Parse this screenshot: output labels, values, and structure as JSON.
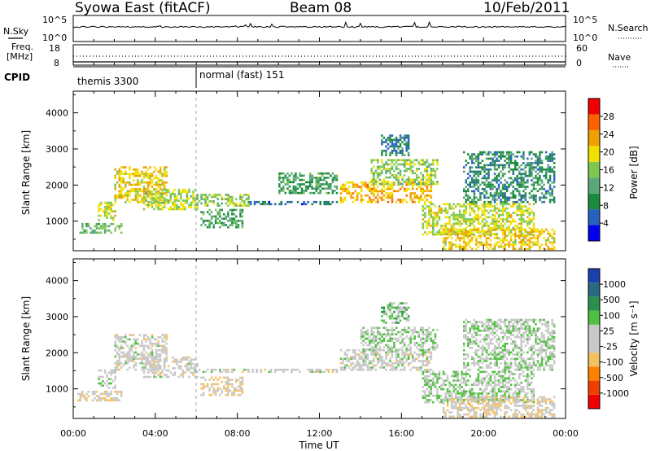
{
  "header": {
    "station": "Syowa East (fitACF)",
    "beam": "Beam 08",
    "date": "10/Feb/2011"
  },
  "noise_panel": {
    "left_label": "N.Sky",
    "right_label": "N.Search",
    "left_ticks": [
      "10^5",
      "10^0"
    ],
    "right_ticks": [
      "10^5",
      "10^0"
    ]
  },
  "freq_panel": {
    "left_label_1": "Freq.",
    "left_label_2": "[MHz]",
    "right_label": "Nave",
    "left_ticks": [
      "18",
      "8"
    ],
    "right_ticks": [
      "60",
      "0"
    ]
  },
  "cpid_panel": {
    "label": "CPID",
    "modes": [
      {
        "name": "themis 3300",
        "start_hour": 0
      },
      {
        "name": "normal (fast) 151",
        "start_hour": 6
      }
    ]
  },
  "time_axis": {
    "label": "Time UT",
    "ticks": [
      "00:00",
      "04:00",
      "08:00",
      "12:00",
      "16:00",
      "20:00",
      "00:00"
    ]
  },
  "colors": {
    "power_scale": [
      "#0000ee",
      "#2860c0",
      "#1a8a3c",
      "#5aa878",
      "#7ec850",
      "#f0e000",
      "#f0a000",
      "#ff6000",
      "#f00000"
    ],
    "velocity_scale": [
      "#f00000",
      "#f04000",
      "#ff8000",
      "#f5c060",
      "#c8c8c8",
      "#c8c8c8",
      "#50c040",
      "#2a9050",
      "#2a6a80",
      "#1a40b0"
    ]
  },
  "chart_data": [
    {
      "type": "heatmap",
      "name": "power",
      "ylabel": "Slant Range [km]",
      "xlabel": "Time UT",
      "xlim": [
        0,
        24
      ],
      "ylim": [
        180,
        4600
      ],
      "yticks": [
        1000,
        2000,
        3000,
        4000
      ],
      "xticks": [
        "00:00",
        "04:00",
        "08:00",
        "12:00",
        "16:00",
        "20:00",
        "00:00"
      ],
      "colorbar": {
        "label": "Power [dB]",
        "ticks": [
          "28",
          "24",
          "20",
          "16",
          "12",
          "8",
          "4"
        ],
        "range": [
          0,
          32
        ]
      },
      "regions": [
        {
          "t": [
            0.2,
            2.4
          ],
          "r": [
            650,
            950
          ],
          "v": 14
        },
        {
          "t": [
            1.2,
            2.1
          ],
          "r": [
            1000,
            1500
          ],
          "v": 18
        },
        {
          "t": [
            2.0,
            4.6
          ],
          "r": [
            1500,
            2500
          ],
          "v": 20
        },
        {
          "t": [
            3.4,
            6.0
          ],
          "r": [
            1300,
            1900
          ],
          "v": 17
        },
        {
          "t": [
            6.0,
            8.5
          ],
          "r": [
            1400,
            1750
          ],
          "v": 16
        },
        {
          "t": [
            6.2,
            8.2
          ],
          "r": [
            800,
            1300
          ],
          "v": 12
        },
        {
          "t": [
            8.5,
            12.8
          ],
          "r": [
            1440,
            1520
          ],
          "v": 7
        },
        {
          "t": [
            10.0,
            12.8
          ],
          "r": [
            1750,
            2300
          ],
          "v": 11
        },
        {
          "t": [
            13.0,
            17.5
          ],
          "r": [
            1500,
            2100
          ],
          "v": 22
        },
        {
          "t": [
            14.5,
            17.8
          ],
          "r": [
            2000,
            2700
          ],
          "v": 16
        },
        {
          "t": [
            15.0,
            16.4
          ],
          "r": [
            2800,
            3400
          ],
          "v": 8
        },
        {
          "t": [
            17.0,
            22.5
          ],
          "r": [
            600,
            1500
          ],
          "v": 18
        },
        {
          "t": [
            18.0,
            23.5
          ],
          "r": [
            200,
            800
          ],
          "v": 21
        },
        {
          "t": [
            19.0,
            23.5
          ],
          "r": [
            1500,
            2900
          ],
          "v": 9
        }
      ]
    },
    {
      "type": "heatmap",
      "name": "velocity",
      "ylabel": "Slant Range [km]",
      "xlabel": "Time UT",
      "xlim": [
        0,
        24
      ],
      "ylim": [
        180,
        4600
      ],
      "yticks": [
        1000,
        2000,
        3000,
        4000
      ],
      "xticks": [
        "00:00",
        "04:00",
        "08:00",
        "12:00",
        "16:00",
        "20:00",
        "00:00"
      ],
      "colorbar": {
        "label": "Velocity [m s⁻¹]",
        "ticks": [
          "1000",
          "500",
          "100",
          "25",
          "-25",
          "-100",
          "-500",
          "-1000"
        ],
        "range": [
          -1250,
          1250
        ]
      },
      "regions": [
        {
          "t": [
            0.2,
            2.4
          ],
          "r": [
            650,
            950
          ],
          "v": -150
        },
        {
          "t": [
            1.2,
            2.1
          ],
          "r": [
            1000,
            1500
          ],
          "v": 80
        },
        {
          "t": [
            2.0,
            4.6
          ],
          "r": [
            1500,
            2500
          ],
          "v": 5
        },
        {
          "t": [
            3.4,
            6.0
          ],
          "r": [
            1300,
            1900
          ],
          "v": -5
        },
        {
          "t": [
            6.2,
            8.2
          ],
          "r": [
            800,
            1300
          ],
          "v": -200
        },
        {
          "t": [
            6.0,
            12.8
          ],
          "r": [
            1440,
            1560
          ],
          "v": 0
        },
        {
          "t": [
            13.0,
            17.5
          ],
          "r": [
            1500,
            2100
          ],
          "v": 10
        },
        {
          "t": [
            14.0,
            17.8
          ],
          "r": [
            2000,
            2700
          ],
          "v": 150
        },
        {
          "t": [
            15.0,
            16.4
          ],
          "r": [
            2800,
            3400
          ],
          "v": 300
        },
        {
          "t": [
            17.0,
            22.5
          ],
          "r": [
            600,
            1500
          ],
          "v": 200
        },
        {
          "t": [
            18.0,
            23.5
          ],
          "r": [
            200,
            800
          ],
          "v": -150
        },
        {
          "t": [
            19.0,
            23.5
          ],
          "r": [
            1500,
            2900
          ],
          "v": 150
        }
      ]
    }
  ]
}
